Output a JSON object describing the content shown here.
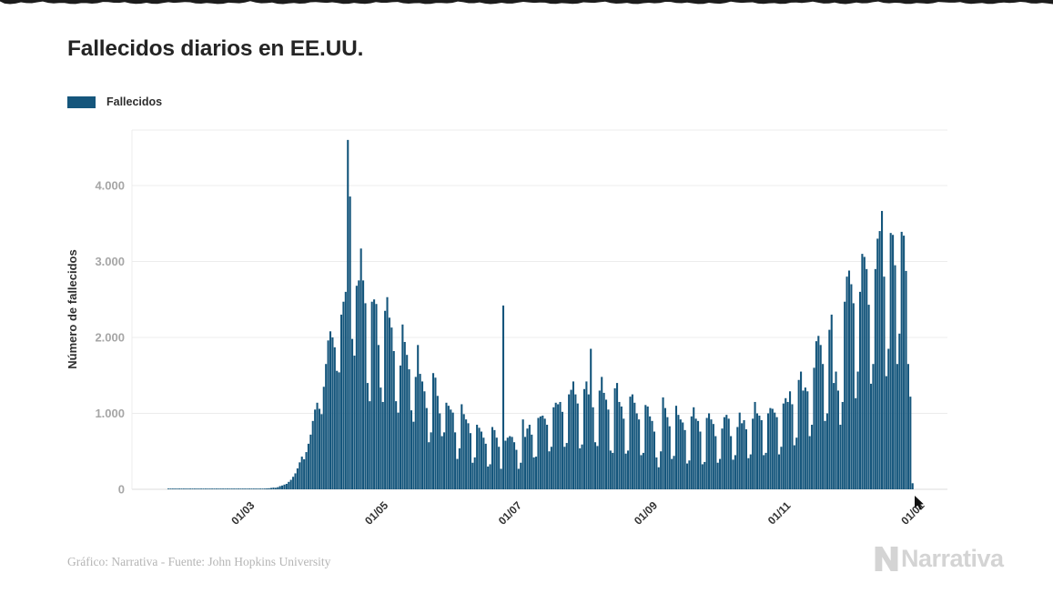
{
  "page": {
    "title": "Fallecidos diarios en EE.UU."
  },
  "legend": {
    "label": "Fallecidos"
  },
  "footer": {
    "credit": "Gráfico: Narrativa - Fuente: John Hopkins University",
    "brand": "Narrativa"
  },
  "colors": {
    "bar": "#15567c",
    "grid": "#ececec",
    "axis_baseline": "#dcdcdc",
    "y_tick_label": "#a6a6a6",
    "x_tick_label": "#333333",
    "title": "#242424",
    "footer_text": "#b5b5b5",
    "brand_gray": "#d4d4d4"
  },
  "chart_data": {
    "type": "bar",
    "title": "Fallecidos diarios en EE.UU.",
    "xlabel": "",
    "ylabel": "Número de fallecidos",
    "ylim": [
      0,
      4730
    ],
    "grid": true,
    "legend_position": "top-left",
    "y_ticks": [
      {
        "value": 0,
        "label": "0"
      },
      {
        "value": 1000,
        "label": "1.000"
      },
      {
        "value": 2000,
        "label": "2.000"
      },
      {
        "value": 3000,
        "label": "3.000"
      },
      {
        "value": 4000,
        "label": "4.000"
      }
    ],
    "x_ticks": [
      {
        "index": 39,
        "label": "01/03"
      },
      {
        "index": 100,
        "label": "01/05"
      },
      {
        "index": 161,
        "label": "01/07"
      },
      {
        "index": 223,
        "label": "01/09"
      },
      {
        "index": 284,
        "label": "01/11"
      },
      {
        "index": 345,
        "label": "01/01"
      }
    ],
    "series": [
      {
        "name": "Fallecidos",
        "color": "#15567c",
        "values": [
          0,
          0,
          0,
          0,
          0,
          1,
          1,
          1,
          1,
          1,
          1,
          1,
          1,
          1,
          1,
          1,
          1,
          1,
          1,
          1,
          1,
          1,
          1,
          1,
          1,
          1,
          1,
          1,
          1,
          1,
          1,
          1,
          1,
          1,
          2,
          2,
          2,
          3,
          3,
          3,
          4,
          4,
          5,
          4,
          6,
          7,
          5,
          6,
          8,
          10,
          12,
          14,
          18,
          22,
          20,
          28,
          42,
          50,
          62,
          72,
          98,
          125,
          165,
          210,
          275,
          355,
          430,
          395,
          490,
          600,
          720,
          900,
          1050,
          1140,
          1060,
          990,
          1350,
          1650,
          1960,
          2080,
          2000,
          1870,
          1560,
          1540,
          2300,
          2470,
          2600,
          4600,
          3855,
          1980,
          1760,
          2680,
          2750,
          3170,
          2750,
          2450,
          1400,
          1160,
          2470,
          2500,
          2440,
          1900,
          1340,
          1150,
          2350,
          2530,
          2260,
          2130,
          1820,
          1160,
          1010,
          1630,
          2170,
          1940,
          1770,
          1580,
          1040,
          890,
          1480,
          1900,
          1520,
          1420,
          1290,
          1070,
          620,
          750,
          1530,
          1470,
          1230,
          1000,
          700,
          750,
          1140,
          1100,
          1050,
          1010,
          750,
          400,
          540,
          1120,
          990,
          920,
          870,
          740,
          350,
          420,
          850,
          810,
          760,
          680,
          600,
          300,
          330,
          820,
          780,
          680,
          560,
          270,
          2420,
          640,
          680,
          700,
          690,
          620,
          520,
          270,
          350,
          920,
          690,
          800,
          850,
          720,
          420,
          430,
          940,
          960,
          970,
          930,
          850,
          500,
          560,
          1080,
          1140,
          1120,
          1150,
          1020,
          560,
          610,
          1250,
          1310,
          1420,
          1250,
          1130,
          540,
          590,
          1320,
          1420,
          1250,
          1850,
          1080,
          620,
          570,
          1300,
          1480,
          1270,
          1180,
          1050,
          510,
          480,
          1330,
          1400,
          1150,
          1090,
          930,
          470,
          510,
          1220,
          1250,
          1140,
          1000,
          920,
          450,
          480,
          1110,
          1090,
          960,
          900,
          760,
          420,
          290,
          500,
          1210,
          1070,
          950,
          830,
          400,
          440,
          1100,
          980,
          920,
          880,
          780,
          340,
          380,
          960,
          1080,
          930,
          900,
          760,
          330,
          360,
          940,
          1000,
          920,
          860,
          700,
          350,
          400,
          800,
          950,
          980,
          930,
          700,
          390,
          450,
          820,
          1010,
          870,
          910,
          790,
          410,
          460,
          930,
          1150,
          1000,
          970,
          910,
          450,
          480,
          1000,
          1070,
          1060,
          1010,
          950,
          460,
          560,
          1130,
          1200,
          1150,
          1290,
          1120,
          580,
          680,
          1440,
          1550,
          1300,
          1340,
          1290,
          700,
          850,
          1600,
          1950,
          2020,
          1900,
          1650,
          900,
          1000,
          2100,
          2300,
          1400,
          1550,
          1300,
          850,
          1150,
          2470,
          2800,
          2880,
          2700,
          2450,
          1200,
          1550,
          2600,
          3100,
          3060,
          2900,
          2430,
          1390,
          1650,
          2900,
          3300,
          3400,
          3665,
          2800,
          1490,
          1850,
          3375,
          3350,
          2950,
          1650,
          2050,
          3390,
          3340,
          2875,
          1650,
          1220,
          80
        ]
      }
    ]
  }
}
